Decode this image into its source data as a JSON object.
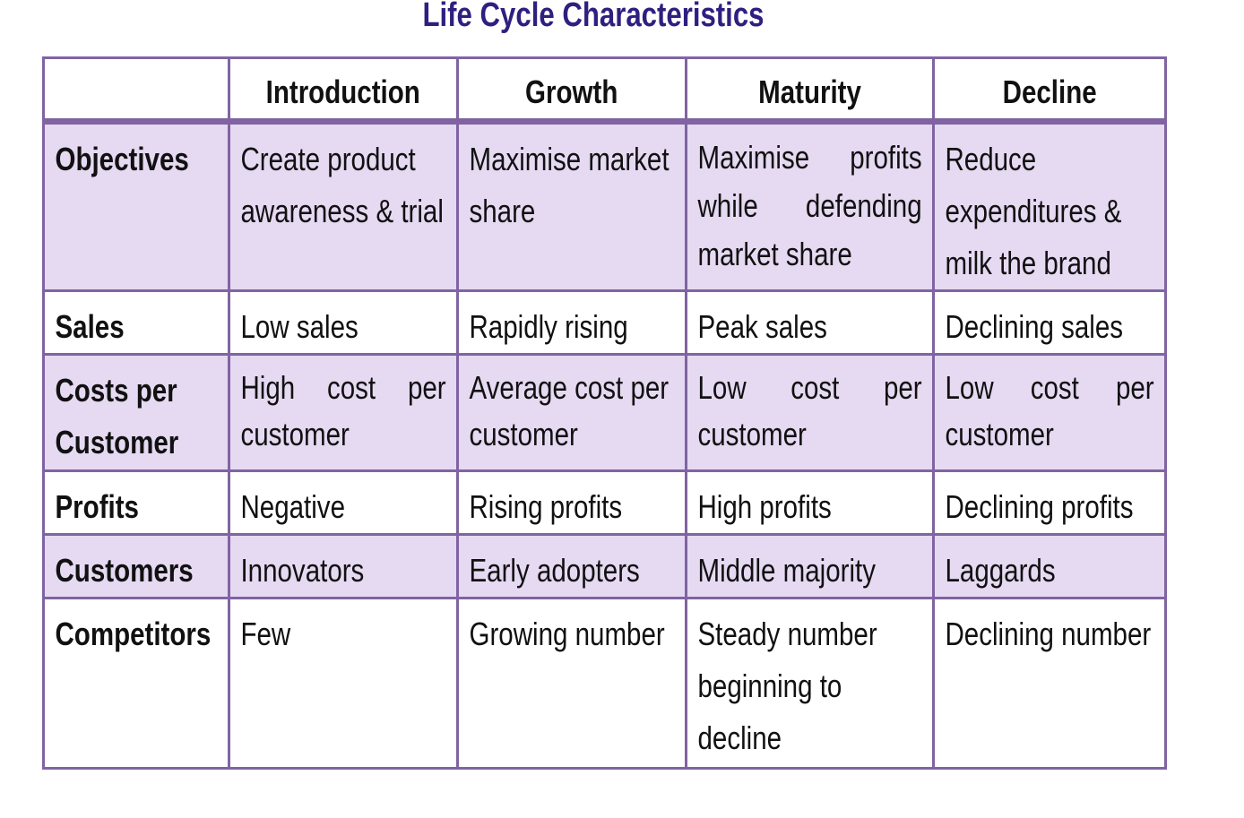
{
  "title": "Life Cycle Characteristics",
  "table": {
    "columns": [
      "",
      "Introduction",
      "Growth",
      "Maturity",
      "Decline"
    ],
    "rows": [
      {
        "label": "Objectives",
        "cells": [
          "Create product awareness & trial",
          "Maximise market share",
          "Maximise profits while defending market share",
          "Reduce expenditures & milk the brand"
        ]
      },
      {
        "label": "Sales",
        "cells": [
          "Low sales",
          "Rapidly rising",
          "Peak sales",
          "Declining sales"
        ]
      },
      {
        "label": "Costs per Customer",
        "cells": [
          "High cost per customer",
          "Average cost per customer",
          "Low cost per customer",
          "Low cost per customer"
        ]
      },
      {
        "label": "Profits",
        "cells": [
          "Negative",
          "Rising profits",
          "High profits",
          "Declining profits"
        ]
      },
      {
        "label": "Customers",
        "cells": [
          "Innovators",
          "Early adopters",
          "Middle majority",
          "Laggards"
        ]
      },
      {
        "label": "Competitors",
        "cells": [
          "Few",
          "Growing number",
          "Steady number beginning to decline",
          "Declining number"
        ]
      }
    ]
  },
  "colors": {
    "title": "#2e1f80",
    "border": "#8064a2",
    "shaded_row": "#e6d9f2"
  }
}
